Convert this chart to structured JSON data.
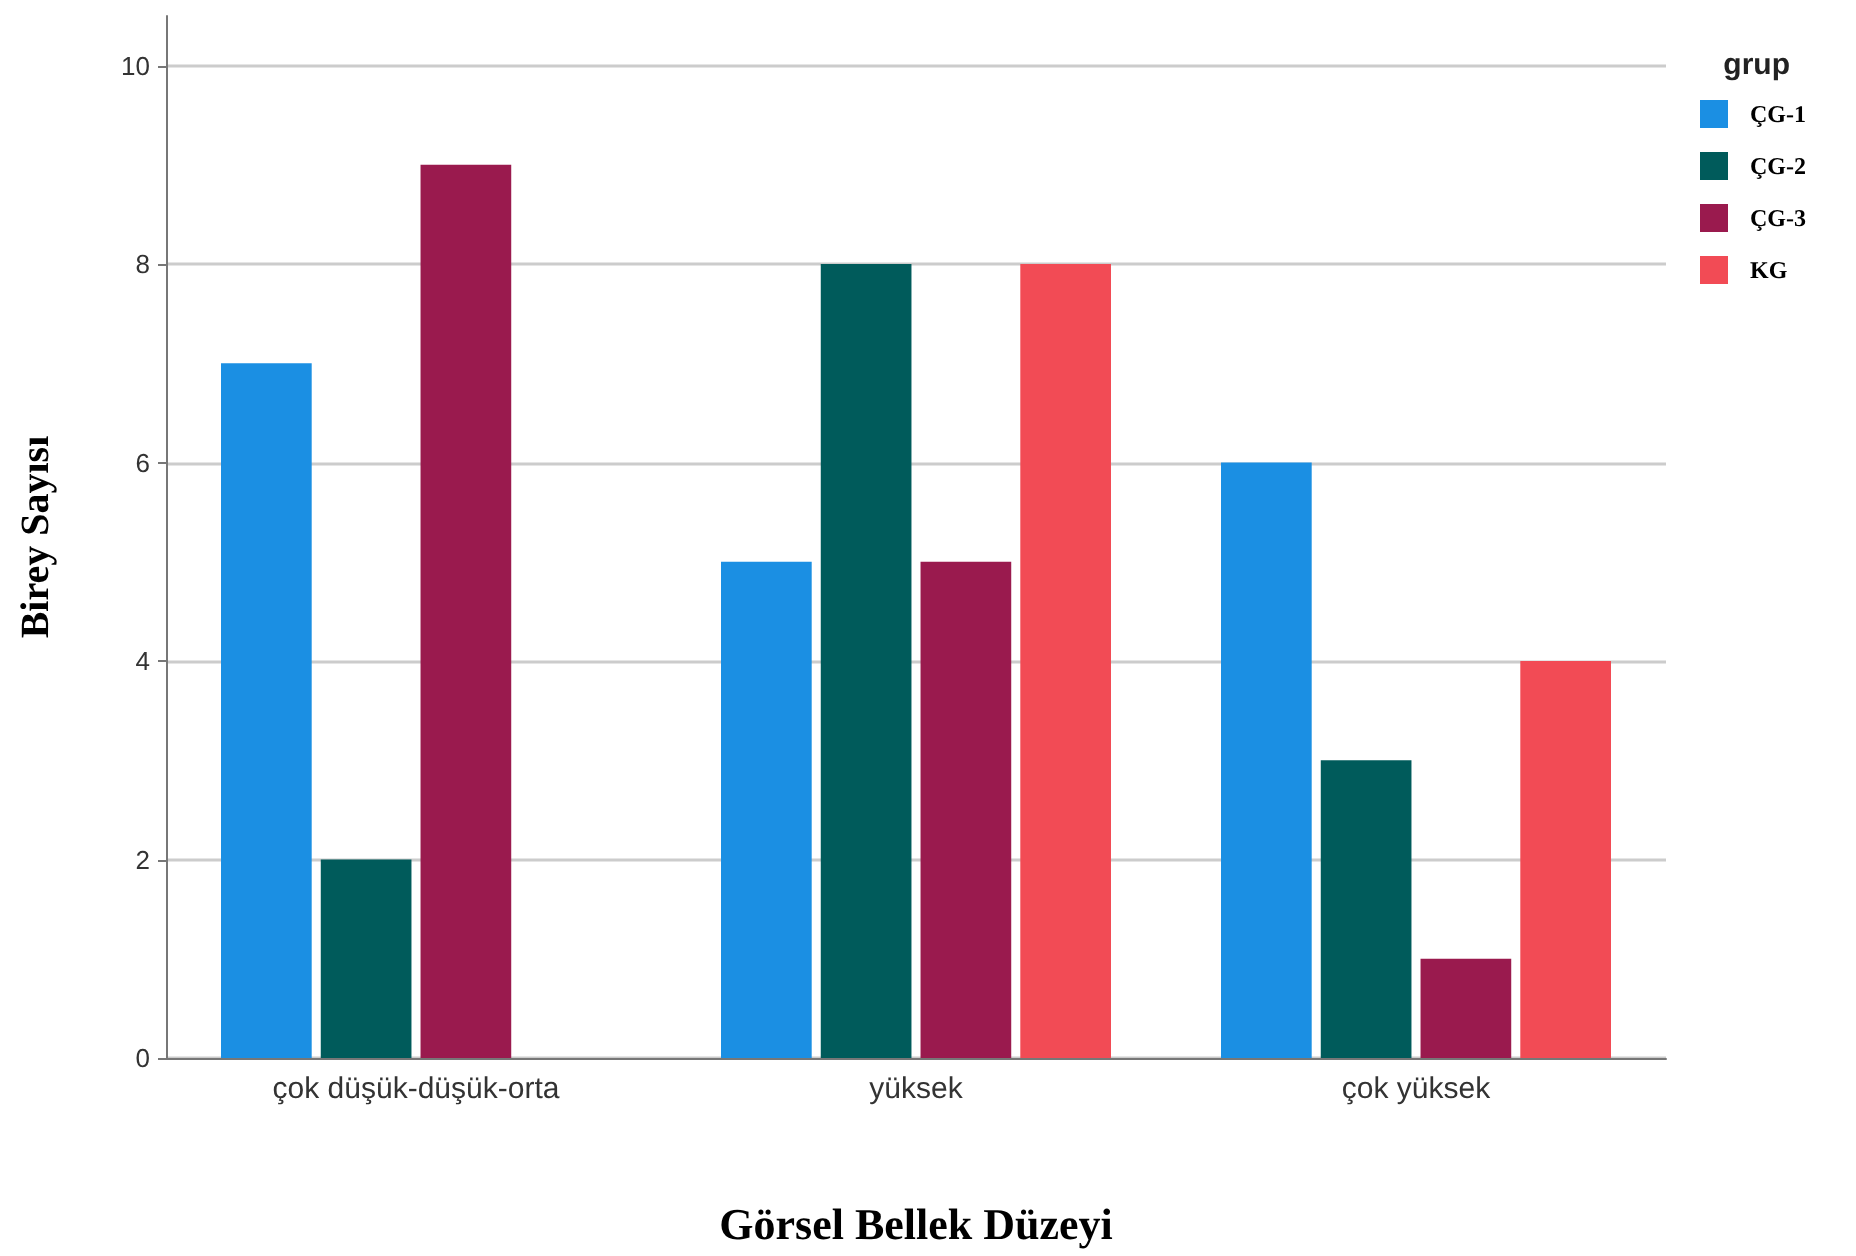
{
  "chart_data": {
    "type": "bar",
    "xlabel": "Görsel Bellek Düzeyi",
    "ylabel": "Birey Sayısı",
    "legend_title": "grup",
    "categories": [
      "çok düşük-düşük-orta",
      "yüksek",
      "çok yüksek"
    ],
    "series": [
      {
        "name": "ÇG-1",
        "color": "#1b8fe3",
        "values": [
          7,
          5,
          6
        ]
      },
      {
        "name": "ÇG-2",
        "color": "#005b5b",
        "values": [
          2,
          8,
          3
        ]
      },
      {
        "name": "ÇG-3",
        "color": "#9a1a4e",
        "values": [
          9,
          5,
          1
        ]
      },
      {
        "name": "KG",
        "color": "#f24b55",
        "values": [
          0,
          8,
          4
        ]
      }
    ],
    "ylim": [
      0,
      10.5
    ],
    "yticks": [
      0,
      2,
      4,
      6,
      8,
      10
    ],
    "grid": "y",
    "legend": "top right"
  }
}
